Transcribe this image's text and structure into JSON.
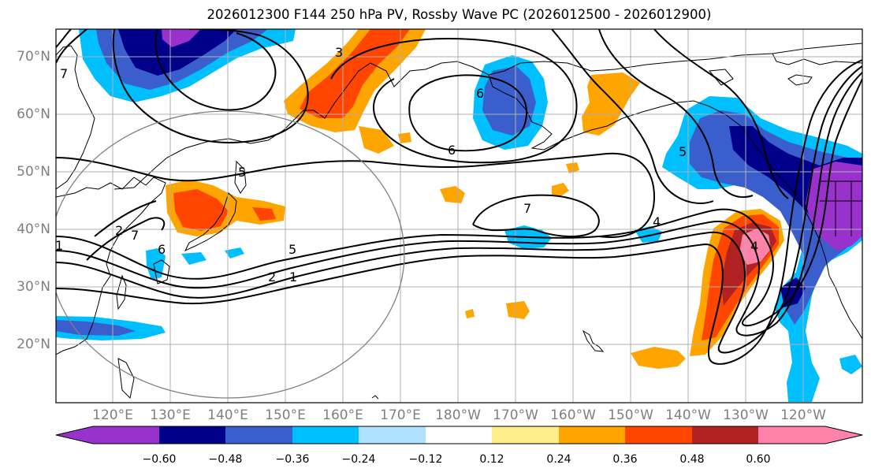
{
  "title": "2026012300 F144 250 hPa PV, Rossby Wave PC (2026012500 - 2026012900)",
  "lat_labels": [
    "70°N",
    "60°N",
    "50°N",
    "40°N",
    "30°N",
    "20°N"
  ],
  "lon_labels": [
    "120°E",
    "130°E",
    "140°E",
    "150°E",
    "160°E",
    "170°E",
    "180°W",
    "170°W",
    "160°W",
    "150°W",
    "140°W",
    "130°W",
    "120°W"
  ],
  "contour_labels": [
    "1",
    "2",
    "3",
    "4",
    "5",
    "6",
    "7"
  ],
  "colorbar": {
    "ticks": [
      "−0.60",
      "−0.48",
      "−0.36",
      "−0.24",
      "−0.12",
      "0.12",
      "0.24",
      "0.36",
      "0.48",
      "0.60"
    ],
    "colors": [
      "#9932cc",
      "#00008b",
      "#3a5fcd",
      "#00bfff",
      "#b0e2ff",
      "#ffffff",
      "#ffec8b",
      "#ffa500",
      "#ff4500",
      "#b22222",
      "#ff82ab"
    ]
  }
}
